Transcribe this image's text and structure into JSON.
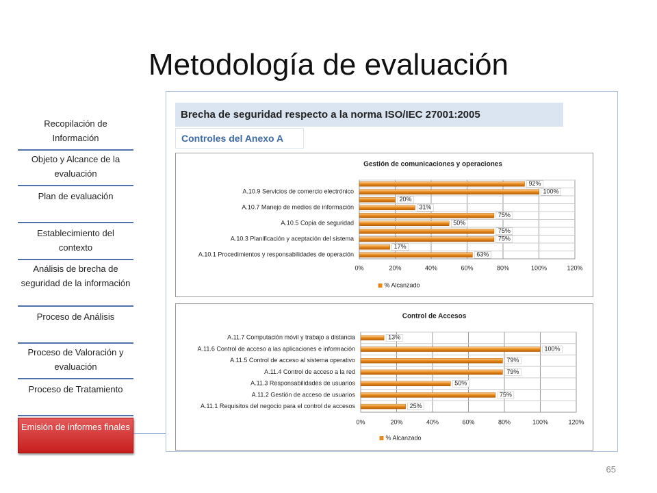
{
  "title": "Metodología de evaluación",
  "sidebar": [
    "Recopilación de Información",
    "Objeto y Alcance de la evaluación",
    "Plan de evaluación",
    "Establecimiento del contexto",
    "Análisis de brecha de seguridad de la información",
    "Proceso de Análisis",
    "Proceso de Valoración y evaluación",
    "Proceso de Tratamiento",
    "Emisión de informes finales"
  ],
  "panel": {
    "heading": "Brecha de seguridad respecto a la norma ISO/IEC 27001:2005",
    "subheading": "Controles del Anexo A"
  },
  "chart_data": [
    {
      "type": "hbar",
      "title": "Gestión de comunicaciones y operaciones",
      "categories": [
        null,
        "A.10.9 Servicios de comercio electrónico",
        null,
        "A.10.7 Manejo de medios de información",
        null,
        "A.10.5 Copia de seguridad",
        null,
        "A.10.3 Planificación y aceptación del sistema",
        null,
        "A.10.1 Procedimientos y responsabilidades de operación"
      ],
      "series": [
        {
          "name": "% Alcanzado",
          "color": "#e8891c",
          "values": [
            92,
            100,
            20,
            31,
            75,
            50,
            75,
            75,
            17,
            63
          ],
          "value_labels": [
            "92%",
            "100%",
            "20%",
            "31%",
            "75%",
            "50%",
            "75%",
            "75%",
            "17%",
            "63%"
          ]
        }
      ],
      "xlim": [
        0,
        120
      ],
      "xticks": [
        {
          "value": 0,
          "label": "0%"
        },
        {
          "value": 20,
          "label": "20%"
        },
        {
          "value": 40,
          "label": "40%"
        },
        {
          "value": 60,
          "label": "60%"
        },
        {
          "value": 80,
          "label": "80%"
        },
        {
          "value": 100,
          "label": "100%"
        },
        {
          "value": 120,
          "label": "120%"
        }
      ],
      "grid": true,
      "legend": "bottom"
    },
    {
      "type": "hbar",
      "title": "Control de Accesos",
      "categories": [
        "A.11.7 Computación móvil y trabajo a distancia",
        "A.11.6 Control de acceso a las aplicaciones e información",
        "A.11.5 Control de acceso al sistema operativo",
        "A.11.4 Control de acceso a la red",
        "A.11.3 Responsabilidades de usuarios",
        "A.11.2 Gestión de acceso de usuarios",
        "A.11.1 Requisitos del negocio para el control de accesos"
      ],
      "series": [
        {
          "name": "% Alcanzado",
          "color": "#e8891c",
          "values": [
            13,
            100,
            79,
            79,
            50,
            75,
            25
          ],
          "value_labels": [
            "13%",
            "100%",
            "79%",
            "79%",
            "50%",
            "75%",
            "25%"
          ]
        }
      ],
      "xlim": [
        0,
        120
      ],
      "xticks": [
        {
          "value": 0,
          "label": "0%"
        },
        {
          "value": 20,
          "label": "20%"
        },
        {
          "value": 40,
          "label": "40%"
        },
        {
          "value": 60,
          "label": "60%"
        },
        {
          "value": 80,
          "label": "80%"
        },
        {
          "value": 100,
          "label": "100%"
        },
        {
          "value": 120,
          "label": "120%"
        }
      ],
      "grid": true,
      "legend": "bottom"
    }
  ],
  "page_number": 65
}
